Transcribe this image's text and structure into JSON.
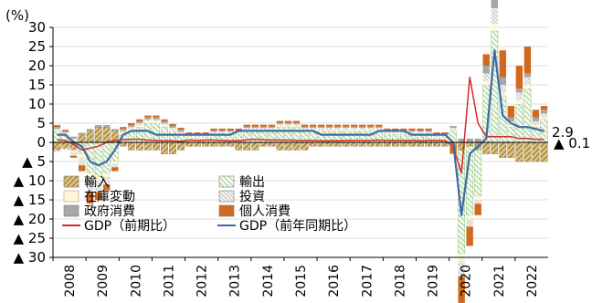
{
  "chart_data": {
    "type": "bar",
    "unit_label": "(%)",
    "x_tick_labels": [
      "2008",
      "2009",
      "2010",
      "2011",
      "2012",
      "2013",
      "2014",
      "2015",
      "2016",
      "2017",
      "2018",
      "2019",
      "2020",
      "2021",
      "2022"
    ],
    "y_ticks": [
      30,
      25,
      20,
      15,
      10,
      5,
      0,
      -5,
      -10,
      -15,
      -20,
      -25,
      -30
    ],
    "y_tick_labels": [
      "30",
      "25",
      "20",
      "15",
      "10",
      "5",
      "0",
      "▲ 5",
      "▲ 10",
      "▲ 15",
      "▲ 20",
      "▲ 25",
      "▲ 30"
    ],
    "ylim": [
      -30,
      30
    ],
    "grid": "horizontal",
    "legend_placement": "bottom-left",
    "annotations": [
      "2.9",
      "▲ 0.1"
    ],
    "quarters": [
      "2008Q1",
      "2008Q2",
      "2008Q3",
      "2008Q4",
      "2009Q1",
      "2009Q2",
      "2009Q3",
      "2009Q4",
      "2010Q1",
      "2010Q2",
      "2010Q3",
      "2010Q4",
      "2011Q1",
      "2011Q2",
      "2011Q3",
      "2011Q4",
      "2012Q1",
      "2012Q2",
      "2012Q3",
      "2012Q4",
      "2013Q1",
      "2013Q2",
      "2013Q3",
      "2013Q4",
      "2014Q1",
      "2014Q2",
      "2014Q3",
      "2014Q4",
      "2015Q1",
      "2015Q2",
      "2015Q3",
      "2015Q4",
      "2016Q1",
      "2016Q2",
      "2016Q3",
      "2016Q4",
      "2017Q1",
      "2017Q2",
      "2017Q3",
      "2017Q4",
      "2018Q1",
      "2018Q2",
      "2018Q3",
      "2018Q4",
      "2019Q1",
      "2019Q2",
      "2019Q3",
      "2019Q4",
      "2020Q1",
      "2020Q2",
      "2020Q3",
      "2020Q4",
      "2021Q1",
      "2021Q2",
      "2021Q3",
      "2021Q4",
      "2022Q1",
      "2022Q2",
      "2022Q3",
      "2022Q4"
    ],
    "series": [
      {
        "name": "輸入",
        "kind": "bar",
        "color": "#d8b96a",
        "pattern": "hatch-dark",
        "values": [
          -2,
          -1.5,
          -2,
          2,
          3,
          4,
          4,
          3,
          -1,
          -2,
          -2,
          -2,
          -2,
          -3,
          -3,
          -2,
          -1,
          -1,
          -1,
          -1,
          -1,
          -1,
          -2,
          -2,
          -2,
          -1,
          -1,
          -2,
          -2,
          -2,
          -2,
          -1,
          -1,
          -1,
          -1,
          -1,
          -1,
          -1,
          -1,
          -1,
          -1,
          -1,
          -1,
          -1,
          -1,
          -1,
          -1,
          -1,
          -1,
          -2,
          -1,
          -2,
          -3,
          -3,
          -4,
          -4,
          -5,
          -5,
          -5,
          -5
        ]
      },
      {
        "name": "輸出",
        "kind": "bar",
        "color": "#d4ecc4",
        "pattern": "hatch-green",
        "values": [
          3,
          2,
          1,
          -3,
          -8,
          -9,
          -8,
          -5,
          2,
          3,
          4,
          5,
          5,
          4,
          3,
          2,
          1,
          1,
          1,
          2,
          2,
          2,
          2,
          3,
          3,
          3,
          3,
          4,
          4,
          4,
          3,
          3,
          3,
          3,
          3,
          3,
          3,
          3,
          3,
          3,
          2,
          2,
          2,
          2,
          2,
          2,
          1,
          1,
          3,
          -27,
          -18,
          -12,
          15,
          29,
          12,
          4,
          10,
          14,
          4,
          6
        ]
      },
      {
        "name": "在庫変動",
        "kind": "bar",
        "color": "#fff6d8",
        "pattern": "solid",
        "values": [
          0.5,
          0.5,
          -0.5,
          -1,
          -2,
          -1,
          -1,
          -0.5,
          0.5,
          0.5,
          0.5,
          0.5,
          0.5,
          0.5,
          0.3,
          0.3,
          0.3,
          0.3,
          0.3,
          0.3,
          0.3,
          0.3,
          0.3,
          0.3,
          0.3,
          0.3,
          0.3,
          0.3,
          0.3,
          0.3,
          0.3,
          0.3,
          0.3,
          0.3,
          0.3,
          0.3,
          0.3,
          0.3,
          0.3,
          0.3,
          0.3,
          0.3,
          0.3,
          0.3,
          0.3,
          0.3,
          0.3,
          0.3,
          0.3,
          -2,
          -1,
          -1,
          1,
          2,
          1,
          0.5,
          1,
          1,
          0.5,
          0.5
        ]
      },
      {
        "name": "投資",
        "kind": "bar",
        "color": "#e6e6e6",
        "pattern": "hatch-grey",
        "values": [
          -0.5,
          -0.5,
          -1,
          -2,
          -3,
          -3,
          -2,
          -1,
          0.5,
          0.5,
          0.5,
          0.5,
          0.5,
          0.5,
          0.5,
          0.5,
          0.5,
          0.5,
          0.5,
          0.5,
          0.5,
          0.5,
          0.5,
          0.5,
          0.5,
          0.5,
          0.5,
          0.5,
          0.5,
          0.5,
          0.5,
          0.5,
          0.5,
          0.5,
          0.5,
          0.5,
          0.5,
          0.5,
          0.5,
          0.5,
          0.5,
          0.5,
          0.5,
          0.5,
          0.5,
          0.5,
          0.5,
          0.5,
          0.5,
          -4,
          -2,
          -1,
          2,
          4,
          2,
          1,
          2,
          2,
          1,
          1
        ]
      },
      {
        "name": "政府消費",
        "kind": "bar",
        "color": "#a7a7a7",
        "pattern": "solid",
        "values": [
          0.5,
          0.5,
          0.5,
          0.5,
          0.5,
          0.5,
          0.5,
          0.5,
          0.5,
          0.5,
          0.5,
          0.5,
          0.5,
          0.5,
          0.5,
          0.5,
          0.3,
          0.3,
          0.3,
          0.3,
          0.3,
          0.3,
          0.3,
          0.3,
          0.3,
          0.3,
          0.3,
          0.3,
          0.3,
          0.3,
          0.3,
          0.3,
          0.3,
          0.3,
          0.3,
          0.3,
          0.3,
          0.3,
          0.3,
          0.3,
          0.3,
          0.3,
          0.3,
          0.3,
          0.3,
          0.3,
          0.3,
          0.3,
          0.5,
          1,
          1,
          1,
          2,
          3,
          2,
          1,
          1,
          1,
          1,
          1
        ]
      },
      {
        "name": "個人消費",
        "kind": "bar",
        "color": "#d2691e",
        "pattern": "solid",
        "values": [
          0.5,
          0.3,
          -0.5,
          -1.5,
          -3,
          -2,
          -1.5,
          -1,
          0.5,
          0.5,
          0.5,
          0.5,
          0.5,
          0.5,
          0.5,
          0.5,
          0.5,
          0.5,
          0.5,
          0.5,
          0.5,
          0.5,
          0.5,
          0.5,
          0.5,
          0.5,
          0.5,
          0.5,
          0.5,
          0.5,
          0.5,
          0.5,
          0.5,
          0.5,
          0.5,
          0.5,
          0.5,
          0.5,
          0.5,
          0.5,
          0.5,
          0.5,
          0.5,
          0.5,
          0.5,
          0.5,
          0.5,
          0.5,
          -2,
          -8,
          -5,
          -3,
          3,
          9,
          7,
          3,
          6,
          7,
          2,
          1
        ]
      },
      {
        "name": "GDP（前期比）",
        "kind": "line",
        "color": "#d62b2b",
        "values": [
          0.7,
          0.5,
          -0.5,
          -2,
          -1.5,
          -1,
          0,
          0.5,
          0.7,
          0.8,
          0.8,
          0.6,
          0.5,
          0.4,
          0.4,
          0.3,
          0.6,
          0.5,
          0.6,
          0.6,
          0.5,
          0.4,
          0.4,
          0.7,
          0.8,
          0.7,
          0.6,
          0.6,
          0.6,
          0.5,
          0.5,
          0.5,
          0.4,
          0.4,
          0.4,
          0.5,
          0.5,
          0.5,
          0.5,
          0.6,
          0.5,
          0.5,
          0.5,
          0.5,
          0.4,
          0.5,
          0.5,
          0.4,
          -1,
          -8,
          17,
          5,
          1.5,
          1.5,
          1.5,
          1.5,
          1,
          1,
          0.8,
          0.7
        ]
      },
      {
        "name": "GDP（前年同期比）",
        "kind": "line",
        "color": "#3f6aa8",
        "values": [
          2,
          2,
          0,
          -1,
          -5,
          -6,
          -5,
          -2,
          2,
          3,
          3,
          3,
          2,
          2,
          2,
          2,
          2,
          2,
          2,
          2,
          2,
          2,
          3,
          3,
          3,
          3,
          3,
          3,
          3,
          3,
          3,
          3,
          2,
          2,
          2,
          2,
          2,
          2,
          2,
          3,
          3,
          3,
          3,
          2,
          2,
          2,
          2,
          2,
          0,
          -19,
          -3,
          -1,
          1,
          24,
          7,
          5,
          4,
          4,
          3.5,
          2.9
        ]
      }
    ]
  }
}
